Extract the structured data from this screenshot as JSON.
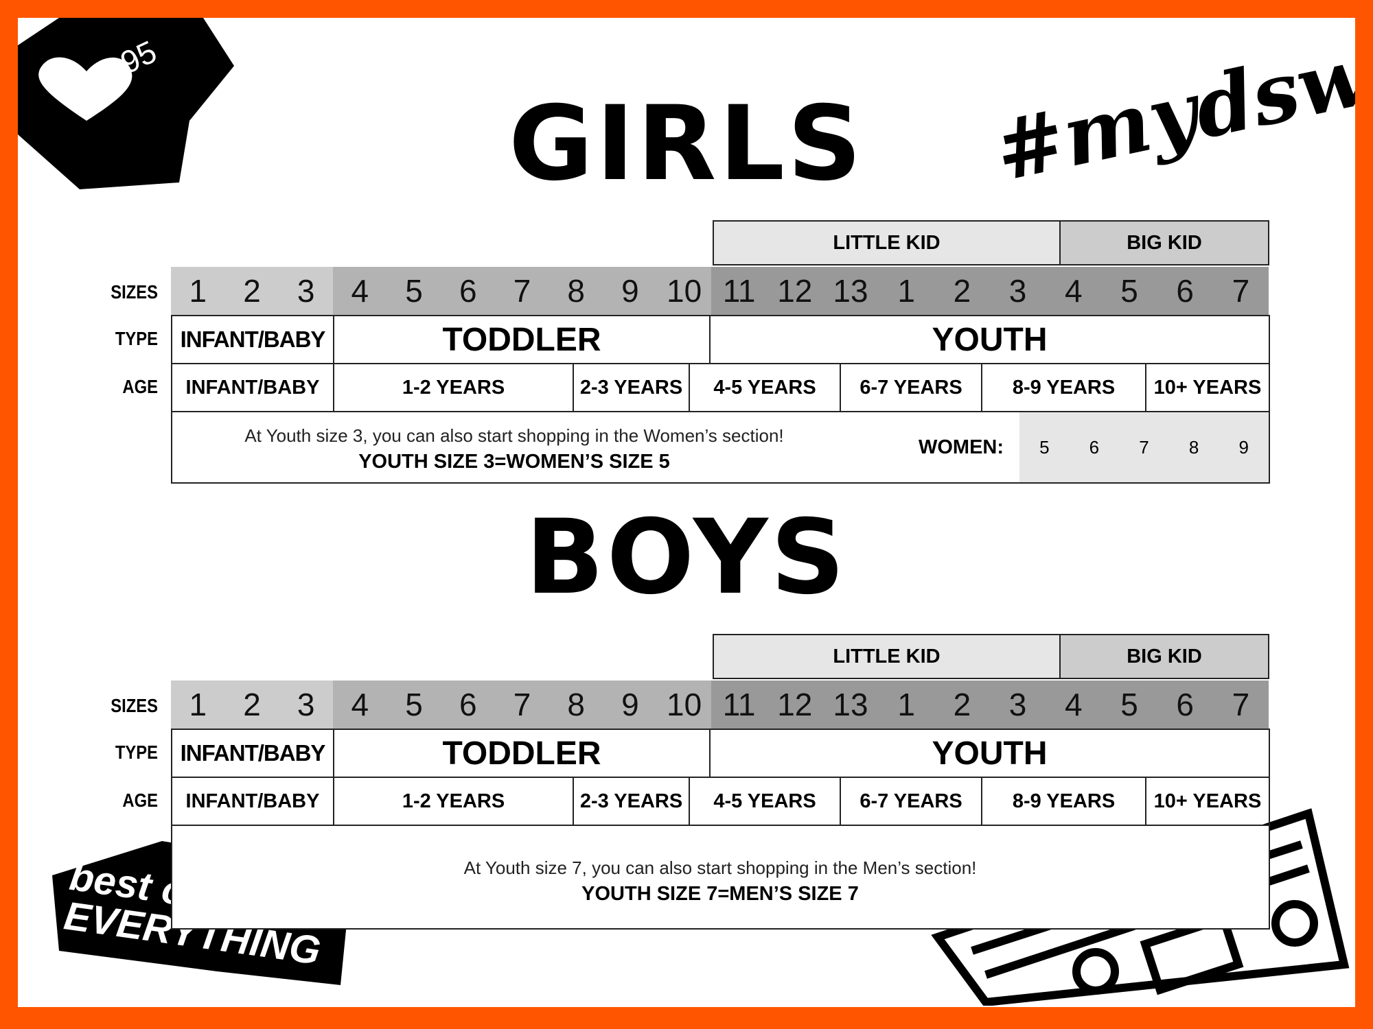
{
  "colors": {
    "border": "#ff5500",
    "group1": "#cccccc",
    "group2": "#b3b3b3",
    "group3": "#999999",
    "little_kid": "#e6e6e6",
    "big_kid": "#cccccc",
    "women_bg": "#e6e6e6"
  },
  "badge": {
    "icon": "heart-icon",
    "count": "95"
  },
  "hashtag": "#mydsw",
  "logo": "best of EVERYTHING",
  "row_labels": {
    "sizes": "SIZES",
    "type": "TYPE",
    "age": "AGE"
  },
  "sections": [
    {
      "title": "GIRLS",
      "kid_headers": [
        "LITTLE KID",
        "BIG KID"
      ],
      "sizes": [
        "1",
        "2",
        "3",
        "4",
        "5",
        "6",
        "7",
        "8",
        "9",
        "10",
        "11",
        "12",
        "13",
        "1",
        "2",
        "3",
        "4",
        "5",
        "6",
        "7"
      ],
      "types": [
        "INFANT/BABY",
        "TODDLER",
        "YOUTH"
      ],
      "ages": [
        "INFANT/BABY",
        "1-2 YEARS",
        "2-3 YEARS",
        "4-5 YEARS",
        "6-7 YEARS",
        "8-9 YEARS",
        "10+ YEARS"
      ],
      "note": "At Youth size 3, you can also start shopping in the Women’s section!",
      "note_bold": "YOUTH SIZE 3=WOMEN’S SIZE 5",
      "women_label": "WOMEN:",
      "women_sizes": [
        "5",
        "6",
        "7",
        "8",
        "9"
      ]
    },
    {
      "title": "BOYS",
      "kid_headers": [
        "LITTLE KID",
        "BIG KID"
      ],
      "sizes": [
        "1",
        "2",
        "3",
        "4",
        "5",
        "6",
        "7",
        "8",
        "9",
        "10",
        "11",
        "12",
        "13",
        "1",
        "2",
        "3",
        "4",
        "5",
        "6",
        "7"
      ],
      "types": [
        "INFANT/BABY",
        "TODDLER",
        "YOUTH"
      ],
      "ages": [
        "INFANT/BABY",
        "1-2 YEARS",
        "2-3 YEARS",
        "4-5 YEARS",
        "6-7 YEARS",
        "8-9 YEARS",
        "10+ YEARS"
      ],
      "note": "At Youth size 7, you can also start shopping in the Men’s section!",
      "note_bold": "YOUTH SIZE 7=MEN’S SIZE 7"
    }
  ]
}
